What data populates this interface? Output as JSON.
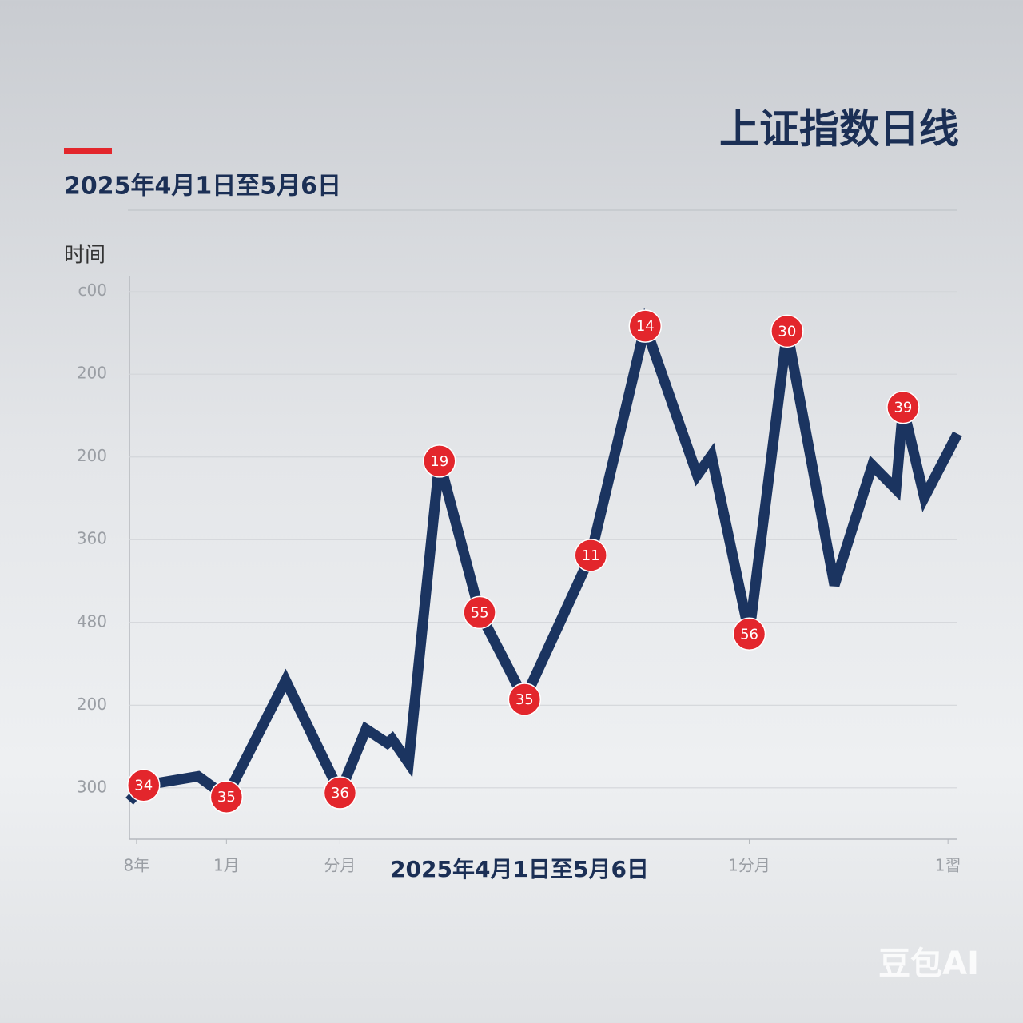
{
  "chart_data": {
    "type": "line",
    "title": "上证指数日线",
    "subtitle": "2025年4月1日至5月6日",
    "y_label": "时间",
    "x_label": "2025年4月1日至5月6日",
    "watermark": "豆包AI",
    "x": [
      0,
      0.6,
      2.9,
      4.1,
      6.6,
      8.9,
      10.0,
      10.9,
      11.1,
      11.8,
      13.1,
      14.8,
      16.7,
      19.5,
      21.8,
      24.0,
      24.6,
      26.2,
      27.8,
      29.8,
      31.4,
      32.4,
      32.7,
      33.6,
      35
    ],
    "series": [
      {
        "name": "上证指数",
        "color": "#1b3460",
        "values": [
          -0.16,
          0.03,
          0.14,
          -0.11,
          1.3,
          -0.06,
          0.71,
          0.54,
          0.59,
          0.3,
          3.95,
          2.12,
          1.07,
          2.81,
          5.58,
          3.78,
          4.02,
          1.86,
          5.52,
          2.45,
          3.9,
          3.61,
          4.6,
          3.51,
          4.28
        ],
        "point_labels": [
          null,
          "34",
          null,
          "35",
          null,
          "36",
          null,
          null,
          null,
          null,
          "19",
          "55",
          "35",
          "11",
          "14",
          null,
          null,
          "56",
          "30",
          null,
          null,
          null,
          "39",
          null,
          null
        ],
        "marker_color": "#e3262c"
      }
    ],
    "xlim": [
      0,
      35
    ],
    "ylim": [
      -0.62,
      6.19
    ],
    "xticks": [
      {
        "value": 0.3,
        "label": "8年"
      },
      {
        "value": 4.1,
        "label": "1月"
      },
      {
        "value": 8.9,
        "label": "分月"
      },
      {
        "value": 26.2,
        "label": "1分月"
      },
      {
        "value": 34.6,
        "label": "1習"
      }
    ],
    "yticks": [
      {
        "value": 6,
        "label": "c00"
      },
      {
        "value": 5,
        "label": "200"
      },
      {
        "value": 4,
        "label": "200"
      },
      {
        "value": 3,
        "label": "360"
      },
      {
        "value": 2,
        "label": "480"
      },
      {
        "value": 1,
        "label": "200"
      },
      {
        "value": 0,
        "label": "300"
      }
    ],
    "grid": true
  }
}
